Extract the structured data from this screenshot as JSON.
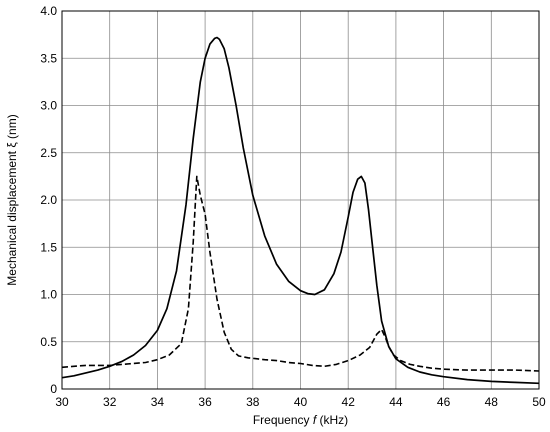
{
  "chart_data": {
    "type": "line",
    "xlabel_prefix": "Frequency ",
    "xlabel_var": "f",
    "xlabel_suffix": " (kHz)",
    "ylabel": "Mechanical displacement ξ (nm)",
    "xlim": [
      30,
      50
    ],
    "ylim": [
      0,
      4.0
    ],
    "xticks": [
      30,
      32,
      34,
      36,
      38,
      40,
      42,
      44,
      46,
      48,
      50
    ],
    "yticks": [
      0,
      0.5,
      1.0,
      1.5,
      2.0,
      2.5,
      3.0,
      3.5,
      4.0
    ],
    "ytick_labels": [
      "0",
      "0.5",
      "1.0",
      "1.5",
      "2.0",
      "2.5",
      "3.0",
      "3.5",
      "4.0"
    ],
    "grid": true,
    "series": [
      {
        "style": "solid",
        "color": "#000000",
        "x": [
          30.0,
          30.5,
          31.0,
          31.5,
          32.0,
          32.5,
          33.0,
          33.5,
          34.0,
          34.4,
          34.8,
          35.2,
          35.5,
          35.8,
          36.0,
          36.2,
          36.4,
          36.5,
          36.6,
          36.8,
          37.0,
          37.3,
          37.6,
          38.0,
          38.5,
          39.0,
          39.5,
          40.0,
          40.3,
          40.6,
          41.0,
          41.4,
          41.7,
          42.0,
          42.2,
          42.4,
          42.55,
          42.7,
          42.85,
          43.0,
          43.2,
          43.4,
          43.7,
          44.0,
          44.5,
          45.0,
          45.5,
          46.0,
          47.0,
          48.0,
          49.0,
          50.0
        ],
        "y": [
          0.12,
          0.14,
          0.17,
          0.2,
          0.24,
          0.29,
          0.36,
          0.46,
          0.62,
          0.85,
          1.25,
          1.95,
          2.65,
          3.25,
          3.5,
          3.65,
          3.71,
          3.72,
          3.7,
          3.6,
          3.4,
          3.0,
          2.55,
          2.05,
          1.62,
          1.32,
          1.14,
          1.04,
          1.01,
          1.0,
          1.05,
          1.22,
          1.45,
          1.82,
          2.08,
          2.22,
          2.25,
          2.18,
          1.9,
          1.55,
          1.1,
          0.72,
          0.45,
          0.32,
          0.23,
          0.18,
          0.15,
          0.13,
          0.1,
          0.08,
          0.07,
          0.06
        ]
      },
      {
        "style": "dashed",
        "color": "#000000",
        "x": [
          30.0,
          30.5,
          31.0,
          31.5,
          32.0,
          32.5,
          33.0,
          33.5,
          34.0,
          34.5,
          35.0,
          35.3,
          35.5,
          35.65,
          35.8,
          36.0,
          36.2,
          36.5,
          36.8,
          37.1,
          37.4,
          37.8,
          38.5,
          39.0,
          39.5,
          40.0,
          40.5,
          41.0,
          41.5,
          42.0,
          42.5,
          42.9,
          43.2,
          43.4,
          43.55,
          43.7,
          43.9,
          44.2,
          44.6,
          45.0,
          45.5,
          46.0,
          47.0,
          48.0,
          49.0,
          50.0
        ],
        "y": [
          0.23,
          0.24,
          0.25,
          0.25,
          0.25,
          0.26,
          0.27,
          0.28,
          0.31,
          0.36,
          0.48,
          0.85,
          1.55,
          2.25,
          2.05,
          1.85,
          1.45,
          0.95,
          0.6,
          0.42,
          0.35,
          0.33,
          0.31,
          0.3,
          0.28,
          0.27,
          0.25,
          0.24,
          0.26,
          0.3,
          0.36,
          0.44,
          0.58,
          0.63,
          0.55,
          0.45,
          0.36,
          0.3,
          0.26,
          0.24,
          0.22,
          0.21,
          0.2,
          0.2,
          0.2,
          0.19
        ]
      }
    ]
  }
}
